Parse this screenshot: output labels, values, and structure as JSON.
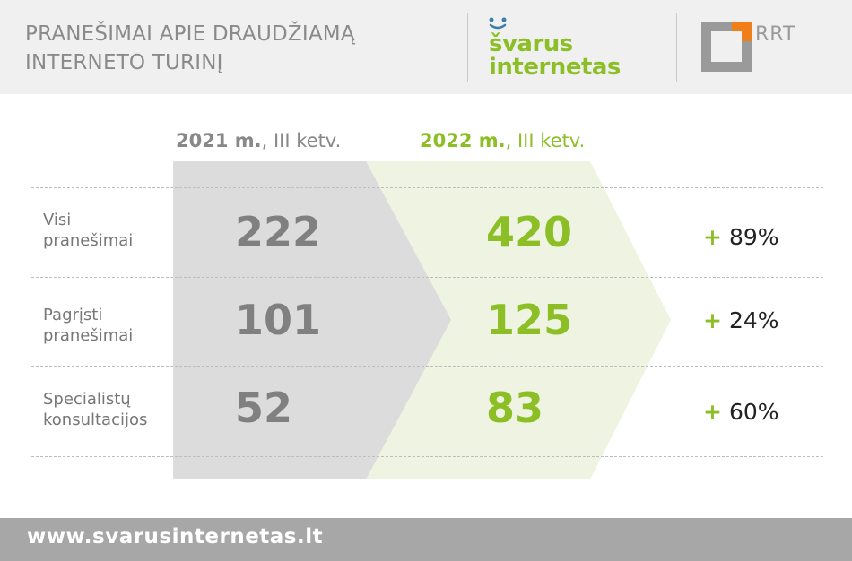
{
  "header": {
    "title_line1": "PRANEŠIMAI APIE DRAUDŽIAMĄ",
    "title_line2": "INTERNETO TURINĮ",
    "logo_svarus_line1": "švarus",
    "logo_svarus_line2": "internetas",
    "logo_rrt": "RRT"
  },
  "columns": {
    "y2021_bold": "2021 m.",
    "y2021_rest": ", III ketv.",
    "y2022_bold": "2022 m.",
    "y2022_rest": ", III ketv."
  },
  "rows": [
    {
      "label_line1": "Visi",
      "label_line2": "pranešimai",
      "v2021": "222",
      "v2022": "420",
      "change": "89%"
    },
    {
      "label_line1": "Pagrįsti",
      "label_line2": "pranešimai",
      "v2021": "101",
      "v2022": "125",
      "change": "24%"
    },
    {
      "label_line1": "Specialistų",
      "label_line2": "konsultacijos",
      "v2021": "52",
      "v2022": "83",
      "change": "60%"
    }
  ],
  "plus_sign": "+",
  "footer": {
    "url": "www.svarusinternetas.lt"
  },
  "colors": {
    "green": "#8cbf26",
    "gray_text": "#808080",
    "gray_band": "#dcdcdc",
    "green_band": "#eef4e1",
    "orange": "#f07f1a"
  }
}
